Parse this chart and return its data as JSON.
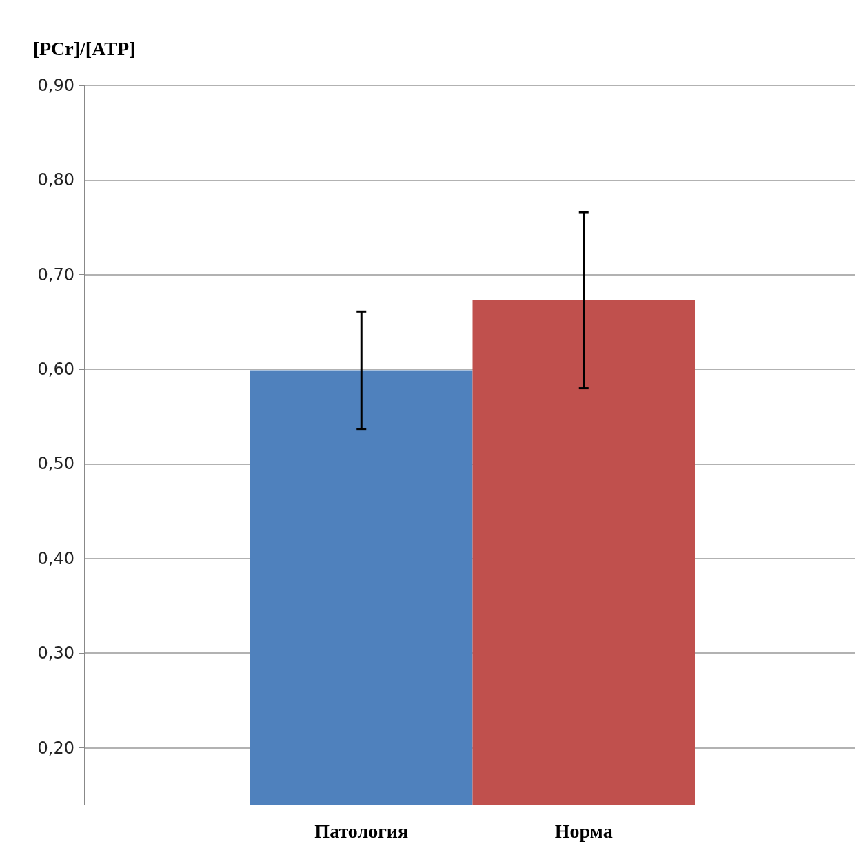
{
  "chart_data": {
    "type": "bar",
    "ylabel": "[PCr]/[ATP]",
    "categories": [
      "Патология",
      "Норма"
    ],
    "values": [
      0.599,
      0.673
    ],
    "colors": [
      "#4f81bd",
      "#c0504d"
    ],
    "errors": [
      0.062,
      0.093
    ],
    "ylim": [
      0.14,
      0.9
    ],
    "yticks": [
      {
        "value": 0.2,
        "label": "0,20"
      },
      {
        "value": 0.3,
        "label": "0,30"
      },
      {
        "value": 0.4,
        "label": "0,40"
      },
      {
        "value": 0.5,
        "label": "0,50"
      },
      {
        "value": 0.6,
        "label": "0,60"
      },
      {
        "value": 0.7,
        "label": "0,70"
      },
      {
        "value": 0.8,
        "label": "0,80"
      },
      {
        "value": 0.9,
        "label": "0,90"
      }
    ],
    "grid": "y"
  }
}
